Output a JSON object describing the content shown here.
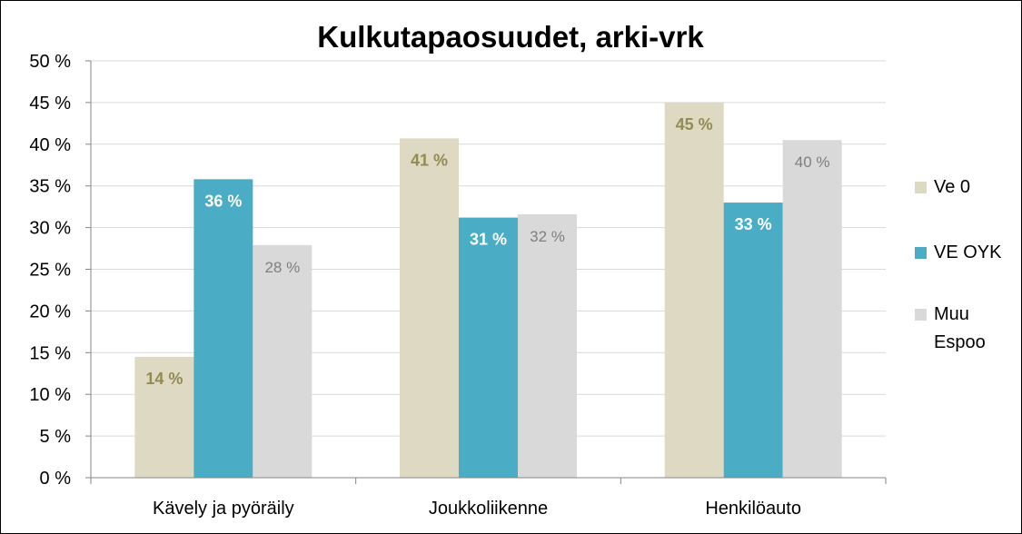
{
  "chart_data": {
    "type": "bar",
    "title": "Kulkutapaosuudet, arki-vrk",
    "categories": [
      "Kävely ja pyöräily",
      "Joukkoliikenne",
      "Henkilöauto"
    ],
    "series": [
      {
        "name": "Ve 0",
        "values": [
          14.5,
          40.7,
          45.0
        ],
        "labels": [
          "14 %",
          "41 %",
          "45 %"
        ],
        "color": "#DDD9C3",
        "label_color": "#948A54"
      },
      {
        "name": "VE OYK",
        "values": [
          35.8,
          31.2,
          33.0
        ],
        "labels": [
          "36 %",
          "31 %",
          "33 %"
        ],
        "color": "#4BACC6",
        "label_color": "#FFFFFF"
      },
      {
        "name": "Muu Espoo",
        "legend_lines": [
          "Muu",
          "Espoo"
        ],
        "values": [
          27.9,
          31.6,
          40.5
        ],
        "labels": [
          "28 %",
          "32 %",
          "40 %"
        ],
        "color": "#D9D9D9",
        "label_color": "#7F7F7F"
      }
    ],
    "yticks": [
      "0 %",
      "5 %",
      "10 %",
      "15 %",
      "20 %",
      "25 %",
      "30 %",
      "35 %",
      "40 %",
      "45 %",
      "50 %"
    ],
    "ylim": [
      0,
      50
    ],
    "ystep": 5,
    "xlabel": "",
    "ylabel": "",
    "grid": true,
    "legend_position": "right",
    "gridline_color": "#D9D9D9",
    "axis_color": "#868686"
  }
}
